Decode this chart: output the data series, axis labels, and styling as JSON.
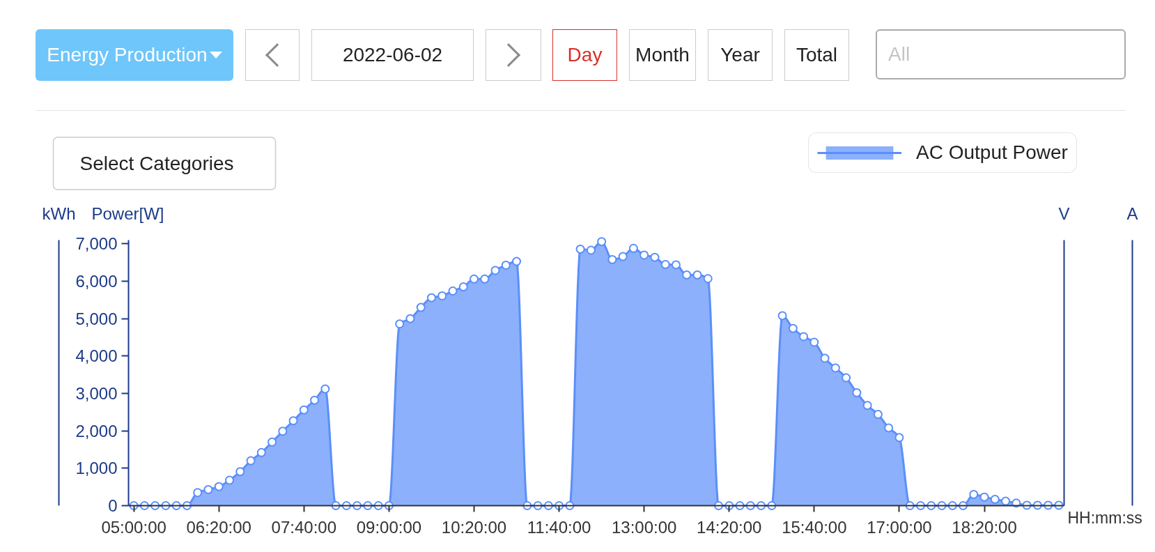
{
  "chart_data": {
    "type": "area",
    "title": "Energy Production",
    "annotations": [
      "2022-06-02",
      "Day",
      "Month",
      "Year",
      "Total",
      "All",
      "Select Categories",
      "kWh"
    ],
    "ylabel": "Power[W]",
    "y2label": "V",
    "y3label": "A",
    "xlabel": "HH:mm:ss",
    "x": [
      "2022-06-02T05:00",
      "2022-06-02T05:10",
      "2022-06-02T05:20",
      "2022-06-02T05:30",
      "2022-06-02T05:40",
      "2022-06-02T05:50",
      "2022-06-02T06:00",
      "2022-06-02T06:10",
      "2022-06-02T06:20",
      "2022-06-02T06:30",
      "2022-06-02T06:40",
      "2022-06-02T06:50",
      "2022-06-02T07:00",
      "2022-06-02T07:10",
      "2022-06-02T07:20",
      "2022-06-02T07:30",
      "2022-06-02T07:40",
      "2022-06-02T07:50",
      "2022-06-02T08:00",
      "2022-06-02T08:10",
      "2022-06-02T08:20",
      "2022-06-02T08:30",
      "2022-06-02T08:40",
      "2022-06-02T08:50",
      "2022-06-02T09:00",
      "2022-06-02T09:10",
      "2022-06-02T09:20",
      "2022-06-02T09:30",
      "2022-06-02T09:40",
      "2022-06-02T09:50",
      "2022-06-02T10:00",
      "2022-06-02T10:10",
      "2022-06-02T10:20",
      "2022-06-02T10:30",
      "2022-06-02T10:40",
      "2022-06-02T10:50",
      "2022-06-02T11:00",
      "2022-06-02T11:10",
      "2022-06-02T11:20",
      "2022-06-02T11:30",
      "2022-06-02T11:40",
      "2022-06-02T11:50",
      "2022-06-02T12:00",
      "2022-06-02T12:10",
      "2022-06-02T12:20",
      "2022-06-02T12:30",
      "2022-06-02T12:40",
      "2022-06-02T12:50",
      "2022-06-02T13:00",
      "2022-06-02T13:10",
      "2022-06-02T13:20",
      "2022-06-02T13:30",
      "2022-06-02T13:40",
      "2022-06-02T13:50",
      "2022-06-02T14:00",
      "2022-06-02T14:10",
      "2022-06-02T14:20",
      "2022-06-02T14:30",
      "2022-06-02T14:40",
      "2022-06-02T14:50",
      "2022-06-02T15:00",
      "2022-06-02T15:10",
      "2022-06-02T15:20",
      "2022-06-02T15:30",
      "2022-06-02T15:40",
      "2022-06-02T15:50",
      "2022-06-02T16:00",
      "2022-06-02T16:10",
      "2022-06-02T16:20",
      "2022-06-02T16:30",
      "2022-06-02T16:40",
      "2022-06-02T16:50",
      "2022-06-02T17:00",
      "2022-06-02T17:10",
      "2022-06-02T17:20",
      "2022-06-02T17:30",
      "2022-06-02T17:40",
      "2022-06-02T17:50",
      "2022-06-02T18:00",
      "2022-06-02T18:10",
      "2022-06-02T18:20",
      "2022-06-02T18:30",
      "2022-06-02T18:40",
      "2022-06-02T18:50",
      "2022-06-02T19:00",
      "2022-06-02T19:10",
      "2022-06-02T19:20",
      "2022-06-02T19:30"
    ],
    "series": [
      {
        "name": "AC Output Power",
        "color": "#5b8ff9",
        "values": [
          0,
          0,
          0,
          0,
          0,
          0,
          350,
          430,
          510,
          680,
          910,
          1200,
          1420,
          1700,
          1990,
          2270,
          2560,
          2820,
          3120,
          0,
          0,
          0,
          0,
          0,
          0,
          4860,
          5000,
          5300,
          5560,
          5610,
          5740,
          5850,
          6060,
          6060,
          6290,
          6430,
          6530,
          0,
          0,
          0,
          0,
          0,
          6860,
          6830,
          7060,
          6580,
          6660,
          6880,
          6700,
          6640,
          6450,
          6440,
          6170,
          6170,
          6070,
          0,
          0,
          0,
          0,
          0,
          0,
          5080,
          4740,
          4520,
          4370,
          3940,
          3680,
          3420,
          3020,
          2680,
          2440,
          2080,
          1820,
          0,
          0,
          0,
          0,
          0,
          0,
          300,
          230,
          170,
          120,
          70,
          10,
          10,
          10,
          10
        ]
      }
    ],
    "xlim": [
      "2022-06-02T04:55",
      "2022-06-02T19:35"
    ],
    "xticks": [
      {
        "value": "2022-06-02T05:00",
        "label": "05:00:00"
      },
      {
        "value": "2022-06-02T06:20",
        "label": "06:20:00"
      },
      {
        "value": "2022-06-02T07:40",
        "label": "07:40:00"
      },
      {
        "value": "2022-06-02T09:00",
        "label": "09:00:00"
      },
      {
        "value": "2022-06-02T10:20",
        "label": "10:20:00"
      },
      {
        "value": "2022-06-02T11:40",
        "label": "11:40:00"
      },
      {
        "value": "2022-06-02T13:00",
        "label": "13:00:00"
      },
      {
        "value": "2022-06-02T14:20",
        "label": "14:20:00"
      },
      {
        "value": "2022-06-02T15:40",
        "label": "15:40:00"
      },
      {
        "value": "2022-06-02T17:00",
        "label": "17:00:00"
      },
      {
        "value": "2022-06-02T18:20",
        "label": "18:20:00"
      }
    ],
    "ylim": [
      0,
      7100
    ],
    "yticks": [
      0,
      {
        "value": 1000,
        "label": "1,000"
      },
      {
        "value": 2000,
        "label": "2,000"
      },
      {
        "value": 3000,
        "label": "3,000"
      },
      {
        "value": 4000,
        "label": "4,000"
      },
      {
        "value": 5000,
        "label": "5,000"
      },
      {
        "value": 6000,
        "label": "6,000"
      },
      {
        "value": 7000,
        "label": "7,000"
      }
    ],
    "marker": "circle",
    "line_style": "solid",
    "legend": "top right"
  }
}
